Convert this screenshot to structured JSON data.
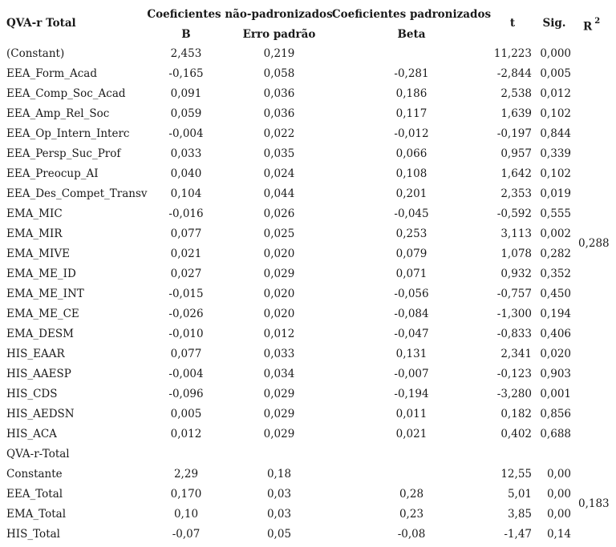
{
  "table": {
    "header": {
      "dependent": "QVA-r Total",
      "group_unstd": "Coeficientes não-padronizados",
      "group_std": "Coeficientes padronizados",
      "col_b": "B",
      "col_se": "Erro padrão",
      "col_beta": "Beta",
      "col_t": "t",
      "col_sig": "Sig.",
      "col_r2": "R",
      "col_r2_sup": "2"
    },
    "rows": [
      {
        "label": "(Constant)",
        "b": "2,453",
        "se": "0,219",
        "beta": "",
        "t": "11,223",
        "sig": "0,000"
      },
      {
        "label": "EEA_Form_Acad",
        "b": "-0,165",
        "se": "0,058",
        "beta": "-0,281",
        "t": "-2,844",
        "sig": "0,005"
      },
      {
        "label": "EEA_Comp_Soc_Acad",
        "b": "0,091",
        "se": "0,036",
        "beta": "0,186",
        "t": "2,538",
        "sig": "0,012"
      },
      {
        "label": "EEA_Amp_Rel_Soc",
        "b": "0,059",
        "se": "0,036",
        "beta": "0,117",
        "t": "1,639",
        "sig": "0,102"
      },
      {
        "label": "EEA_Op_Intern_Interc",
        "b": "-0,004",
        "se": "0,022",
        "beta": "-0,012",
        "t": "-0,197",
        "sig": "0,844"
      },
      {
        "label": "EEA_Persp_Suc_Prof",
        "b": "0,033",
        "se": "0,035",
        "beta": "0,066",
        "t": "0,957",
        "sig": "0,339"
      },
      {
        "label": "EEA_Preocup_AI",
        "b": "0,040",
        "se": "0,024",
        "beta": "0,108",
        "t": "1,642",
        "sig": "0,102"
      },
      {
        "label": "EEA_Des_Compet_Transv",
        "b": "0,104",
        "se": "0,044",
        "beta": "0,201",
        "t": "2,353",
        "sig": "0,019"
      },
      {
        "label": "EMA_MIC",
        "b": "-0,016",
        "se": "0,026",
        "beta": "-0,045",
        "t": "-0,592",
        "sig": "0,555"
      },
      {
        "label": "EMA_MIR",
        "b": "0,077",
        "se": "0,025",
        "beta": "0,253",
        "t": "3,113",
        "sig": "0,002"
      },
      {
        "label": "EMA_MIVE",
        "b": "0,021",
        "se": "0,020",
        "beta": "0,079",
        "t": "1,078",
        "sig": "0,282"
      },
      {
        "label": "EMA_ME_ID",
        "b": "0,027",
        "se": "0,029",
        "beta": "0,071",
        "t": "0,932",
        "sig": "0,352"
      },
      {
        "label": "EMA_ME_INT",
        "b": "-0,015",
        "se": "0,020",
        "beta": "-0,056",
        "t": "-0,757",
        "sig": "0,450"
      },
      {
        "label": "EMA_ME_CE",
        "b": "-0,026",
        "se": "0,020",
        "beta": "-0,084",
        "t": "-1,300",
        "sig": "0,194"
      },
      {
        "label": "EMA_DESM",
        "b": "-0,010",
        "se": "0,012",
        "beta": "-0,047",
        "t": "-0,833",
        "sig": "0,406"
      },
      {
        "label": "HIS_EAAR",
        "b": "0,077",
        "se": "0,033",
        "beta": "0,131",
        "t": "2,341",
        "sig": "0,020"
      },
      {
        "label": "HIS_AAESP",
        "b": "-0,004",
        "se": "0,034",
        "beta": "-0,007",
        "t": "-0,123",
        "sig": "0,903"
      },
      {
        "label": "HIS_CDS",
        "b": "-0,096",
        "se": "0,029",
        "beta": "-0,194",
        "t": "-3,280",
        "sig": "0,001"
      },
      {
        "label": "HIS_AEDSN",
        "b": "0,005",
        "se": "0,029",
        "beta": "0,011",
        "t": "0,182",
        "sig": "0,856"
      },
      {
        "label": "HIS_ACA",
        "b": "0,012",
        "se": "0,029",
        "beta": "0,021",
        "t": "0,402",
        "sig": "0,688"
      },
      {
        "label": "QVA-r-Total",
        "b": "",
        "se": "",
        "beta": "",
        "t": "",
        "sig": ""
      },
      {
        "label": "Constante",
        "b": "2,29",
        "se": "0,18",
        "beta": "",
        "t": "12,55",
        "sig": "0,00"
      },
      {
        "label": "EEA_Total",
        "b": "0,170",
        "se": "0,03",
        "beta": "0,28",
        "t": "5,01",
        "sig": "0,00"
      },
      {
        "label": "EMA_Total",
        "b": "0,10",
        "se": "0,03",
        "beta": "0,23",
        "t": "3,85",
        "sig": "0,00"
      },
      {
        "label": "HIS_Total",
        "b": "-0,07",
        "se": "0,05",
        "beta": "-0,08",
        "t": "-1,47",
        "sig": "0,14"
      }
    ],
    "r2": {
      "model1": "0,288",
      "model2": "0,183"
    }
  }
}
